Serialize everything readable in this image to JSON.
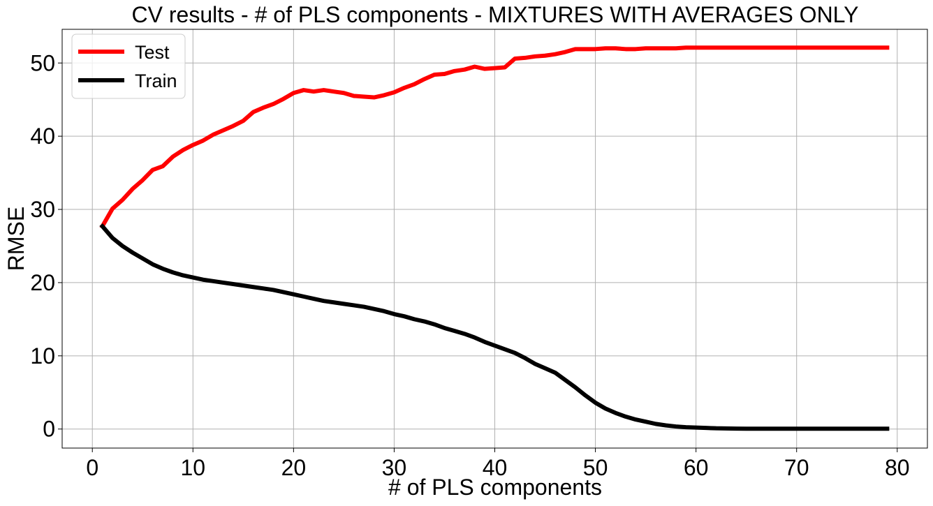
{
  "chart_data": {
    "type": "line",
    "title": "CV results - # of PLS components - MIXTURES WITH AVERAGES ONLY",
    "xlabel": "# of PLS components",
    "ylabel": "RMSE",
    "xlim": [
      -3,
      83
    ],
    "ylim": [
      -2.6,
      54.6
    ],
    "xticks": [
      0,
      10,
      20,
      30,
      40,
      50,
      60,
      70,
      80
    ],
    "yticks": [
      0,
      10,
      20,
      30,
      40,
      50
    ],
    "grid": true,
    "legend_position": "top-left",
    "x": [
      1,
      2,
      3,
      4,
      5,
      6,
      7,
      8,
      9,
      10,
      11,
      12,
      13,
      14,
      15,
      16,
      17,
      18,
      19,
      20,
      21,
      22,
      23,
      24,
      25,
      26,
      27,
      28,
      29,
      30,
      31,
      32,
      33,
      34,
      35,
      36,
      37,
      38,
      39,
      40,
      41,
      42,
      43,
      44,
      45,
      46,
      47,
      48,
      49,
      50,
      51,
      52,
      53,
      54,
      55,
      56,
      57,
      58,
      59,
      60,
      61,
      62,
      63,
      64,
      65,
      66,
      67,
      68,
      69,
      70,
      71,
      72,
      73,
      74,
      75,
      76,
      77,
      78,
      79
    ],
    "series": [
      {
        "name": "Test",
        "color": "#ff0000",
        "values": [
          27.7,
          30.1,
          31.3,
          32.8,
          34.0,
          35.4,
          35.9,
          37.2,
          38.1,
          38.8,
          39.4,
          40.2,
          40.8,
          41.4,
          42.1,
          43.3,
          43.9,
          44.4,
          45.1,
          45.9,
          46.3,
          46.1,
          46.3,
          46.1,
          45.9,
          45.5,
          45.4,
          45.3,
          45.6,
          46.0,
          46.6,
          47.1,
          47.8,
          48.4,
          48.5,
          48.9,
          49.1,
          49.5,
          49.2,
          49.3,
          49.4,
          50.6,
          50.7,
          50.9,
          51.0,
          51.2,
          51.5,
          51.9,
          51.9,
          51.9,
          52.0,
          52.0,
          51.9,
          51.9,
          52.0,
          52.0,
          52.0,
          52.0,
          52.1,
          52.1,
          52.1,
          52.1,
          52.1,
          52.1,
          52.1,
          52.1,
          52.1,
          52.1,
          52.1,
          52.1,
          52.1,
          52.1,
          52.1,
          52.1,
          52.1,
          52.1,
          52.1,
          52.1,
          52.1
        ]
      },
      {
        "name": "Train",
        "color": "#000000",
        "values": [
          27.7,
          26.1,
          25.0,
          24.1,
          23.3,
          22.5,
          21.9,
          21.4,
          21.0,
          20.7,
          20.4,
          20.2,
          20.0,
          19.8,
          19.6,
          19.4,
          19.2,
          19.0,
          18.7,
          18.4,
          18.1,
          17.8,
          17.5,
          17.3,
          17.1,
          16.9,
          16.7,
          16.4,
          16.1,
          15.7,
          15.4,
          15.0,
          14.7,
          14.3,
          13.8,
          13.4,
          13.0,
          12.5,
          11.9,
          11.4,
          10.9,
          10.4,
          9.7,
          8.9,
          8.3,
          7.7,
          6.7,
          5.7,
          4.6,
          3.6,
          2.8,
          2.2,
          1.7,
          1.3,
          1.0,
          0.7,
          0.5,
          0.35,
          0.25,
          0.2,
          0.15,
          0.1,
          0.08,
          0.06,
          0.05,
          0.05,
          0.04,
          0.04,
          0.04,
          0.04,
          0.04,
          0.04,
          0.04,
          0.04,
          0.04,
          0.04,
          0.04,
          0.04,
          0.04
        ]
      }
    ]
  }
}
